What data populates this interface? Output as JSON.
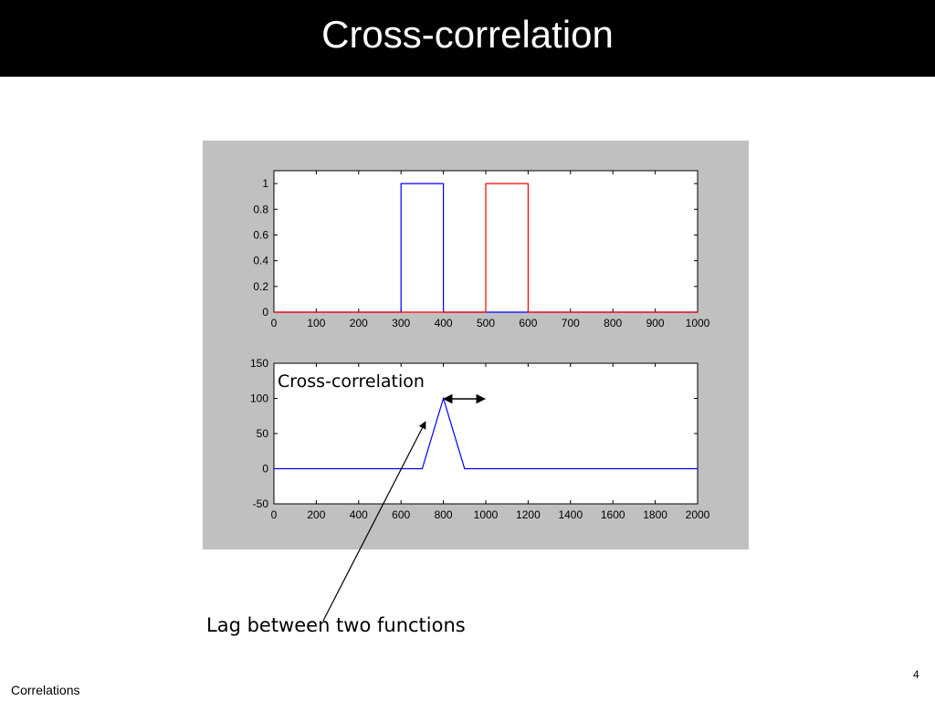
{
  "slide": {
    "title": "Cross-correlation",
    "footer": "Correlations",
    "page_number": "4"
  },
  "annotations": {
    "plot_label": "Cross-correlation",
    "lag_label": "Lag between two functions"
  },
  "chart_data": [
    {
      "type": "line",
      "title": "",
      "xlabel": "",
      "ylabel": "",
      "xlim": [
        0,
        1000
      ],
      "ylim": [
        0,
        1.1
      ],
      "xticks": [
        0,
        100,
        200,
        300,
        400,
        500,
        600,
        700,
        800,
        900,
        1000
      ],
      "yticks": [
        0,
        0.2,
        0.4,
        0.6,
        0.8,
        1
      ],
      "ytick_labels": [
        "0",
        "0.2",
        "0.4",
        "0.6",
        "0.8",
        "1"
      ],
      "grid": false,
      "series": [
        {
          "color": "#0000ff",
          "x": [
            0,
            300,
            300,
            400,
            400,
            1000
          ],
          "y": [
            0,
            0,
            1,
            1,
            0,
            0
          ]
        },
        {
          "color": "#ff0000",
          "x": [
            0,
            500,
            500,
            600,
            600,
            1000
          ],
          "y": [
            0,
            0,
            1,
            1,
            0,
            0
          ]
        }
      ]
    },
    {
      "type": "line",
      "title": "",
      "xlabel": "",
      "ylabel": "",
      "xlim": [
        0,
        2000
      ],
      "ylim": [
        -50,
        150
      ],
      "xticks": [
        0,
        200,
        400,
        600,
        800,
        1000,
        1200,
        1400,
        1600,
        1800,
        2000
      ],
      "yticks": [
        -50,
        0,
        50,
        100,
        150
      ],
      "ytick_labels": [
        "-50",
        "0",
        "50",
        "100",
        "150"
      ],
      "grid": false,
      "series": [
        {
          "color": "#0000ff",
          "x": [
            0,
            700,
            800,
            900,
            2000
          ],
          "y": [
            0,
            0,
            100,
            0,
            0
          ]
        }
      ]
    }
  ]
}
